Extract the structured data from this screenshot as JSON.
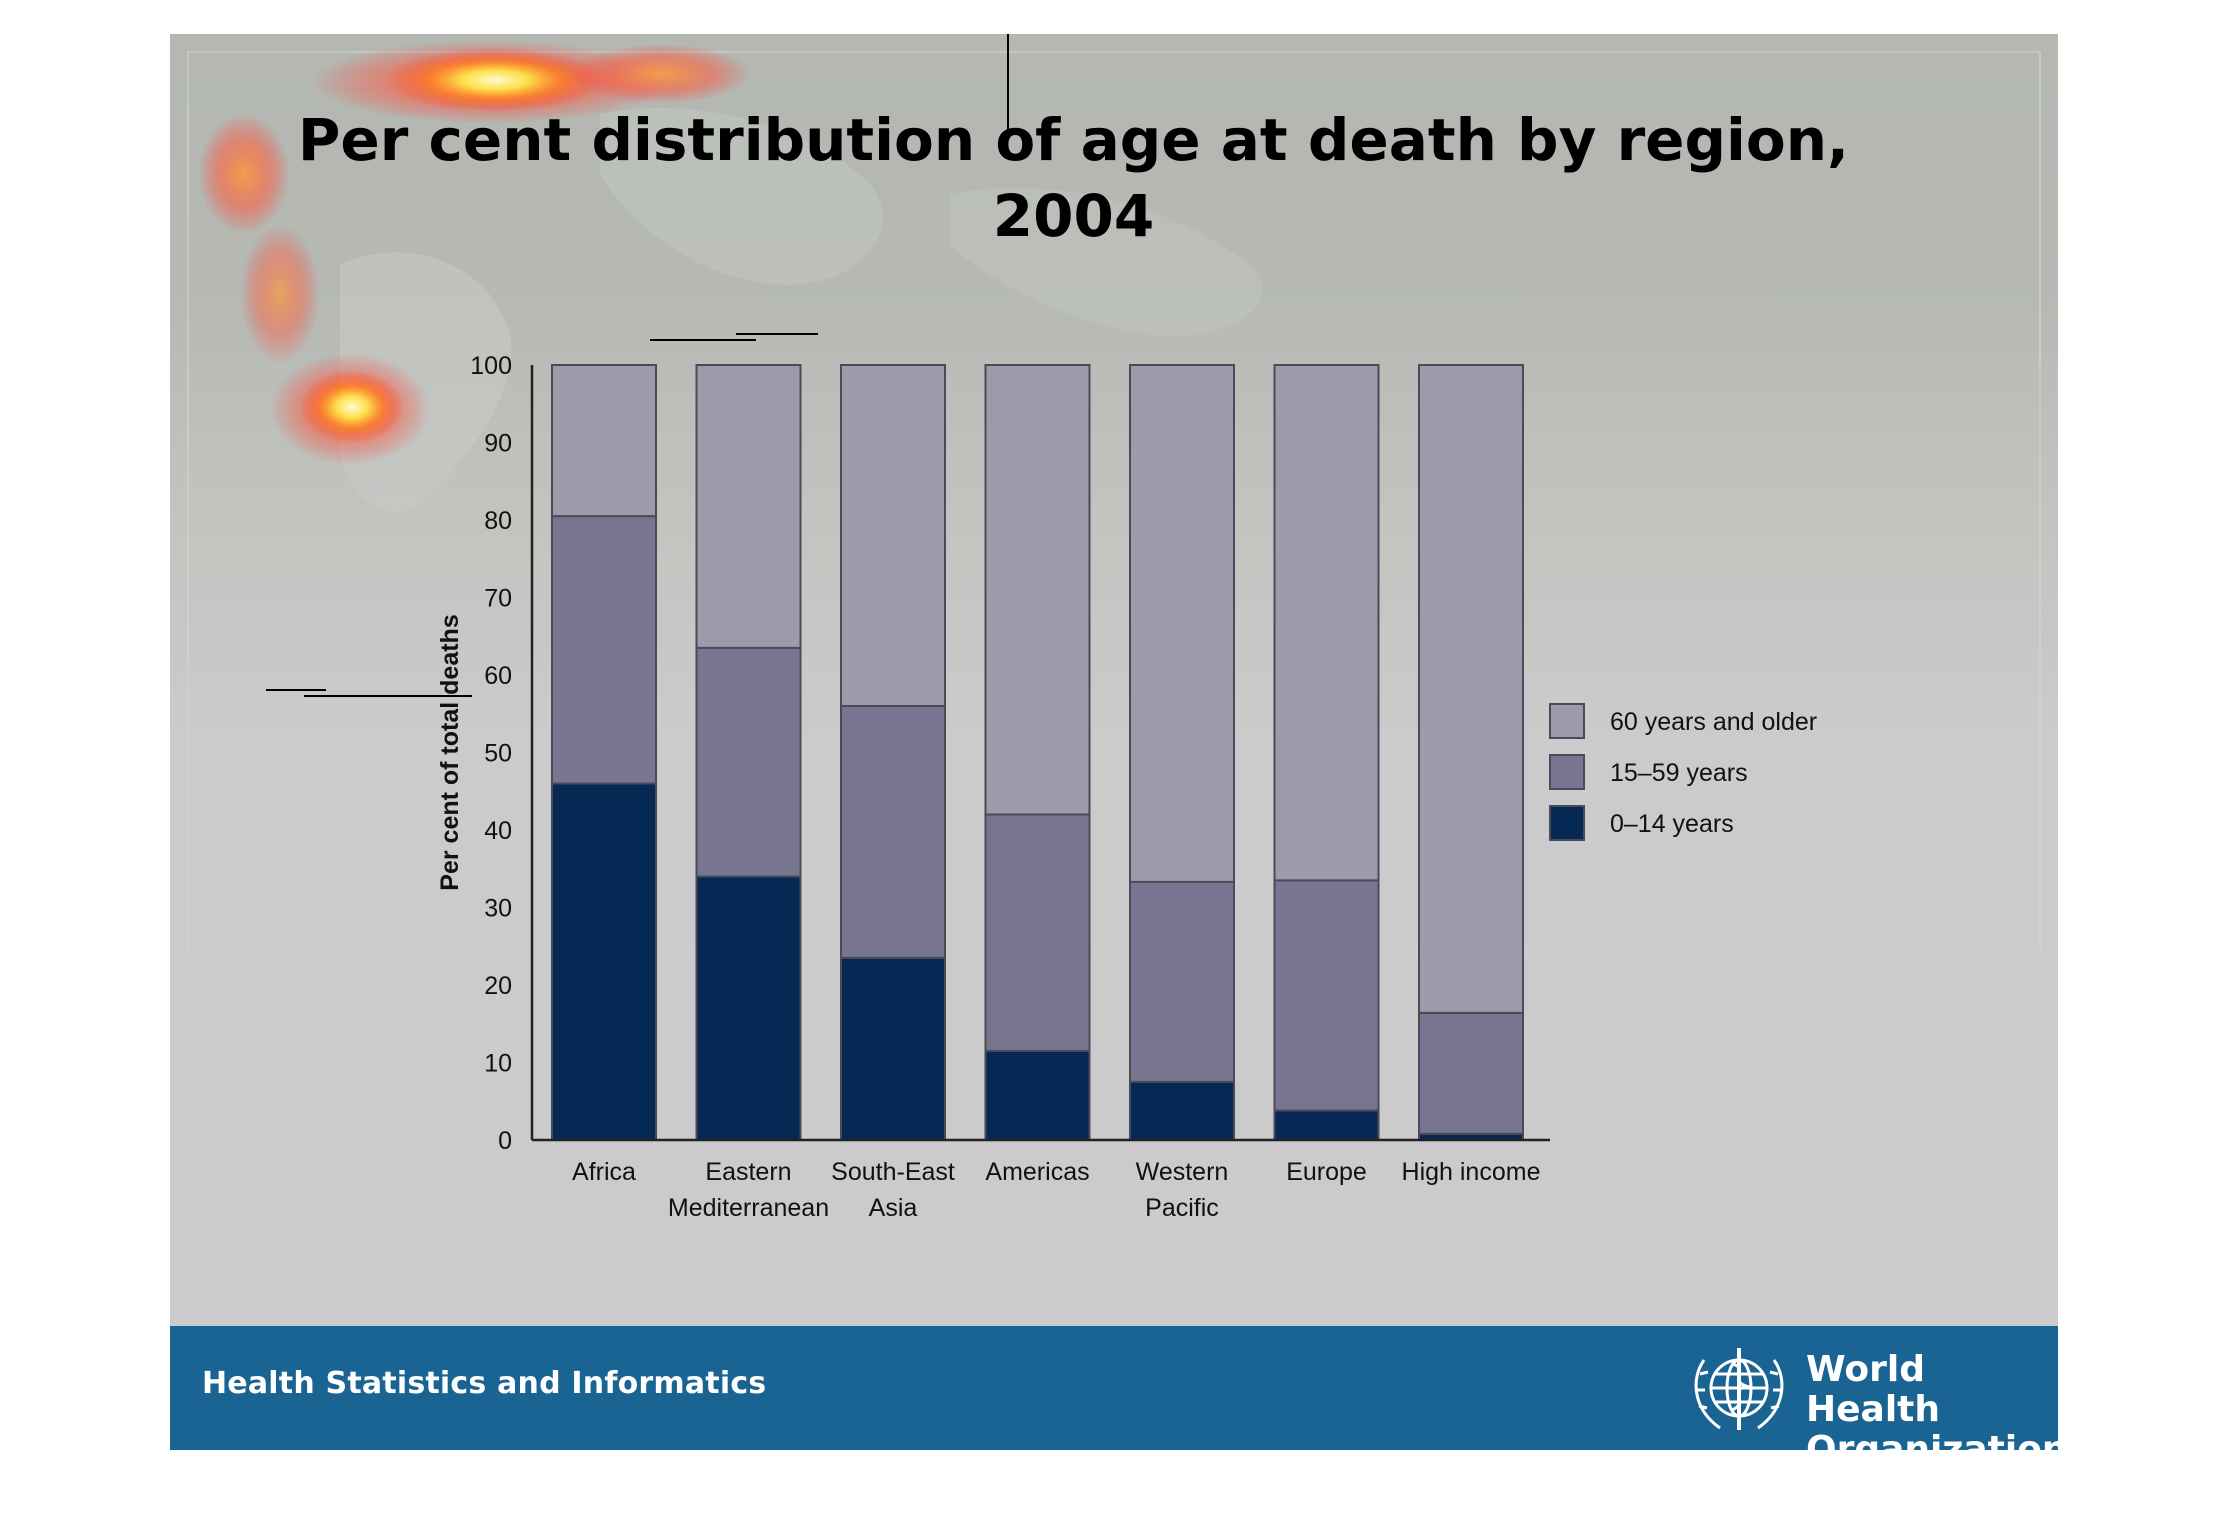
{
  "slide": {
    "title_line1": "Per cent distribution of age at death by region,",
    "title_line2": "2004",
    "footer_text": "Health Statistics and Informatics",
    "logo_line1": "World Health",
    "logo_line2": "Organization"
  },
  "chart_data": {
    "type": "bar",
    "stacked": true,
    "title": "Per cent distribution of age at death by region, 2004",
    "xlabel": "",
    "ylabel": "Per cent of total deaths",
    "ylim": [
      0,
      100
    ],
    "yticks": [
      0,
      10,
      20,
      30,
      40,
      50,
      60,
      70,
      80,
      90,
      100
    ],
    "categories": [
      [
        "Africa"
      ],
      [
        "Eastern",
        "Mediterranean"
      ],
      [
        "South-East",
        "Asia"
      ],
      [
        "Americas"
      ],
      [
        "Western",
        "Pacific"
      ],
      [
        "Europe"
      ],
      [
        "High income"
      ]
    ],
    "series": [
      {
        "name": "0–14 years",
        "color": "#052855",
        "values": [
          46,
          34,
          23.5,
          11.5,
          7.5,
          3.8,
          0.8
        ]
      },
      {
        "name": "15–59 years",
        "color": "#787591",
        "values": [
          34.5,
          29.5,
          32.5,
          30.5,
          25.8,
          29.7,
          15.6
        ]
      },
      {
        "name": "60 years and older",
        "color": "#9d9ba9",
        "values": [
          19.5,
          36.5,
          44,
          58,
          66.7,
          66.5,
          83.6
        ]
      }
    ],
    "legend_position": "right",
    "legend_order": [
      "60 years and older",
      "15–59 years",
      "0–14 years"
    ],
    "grid": false
  }
}
